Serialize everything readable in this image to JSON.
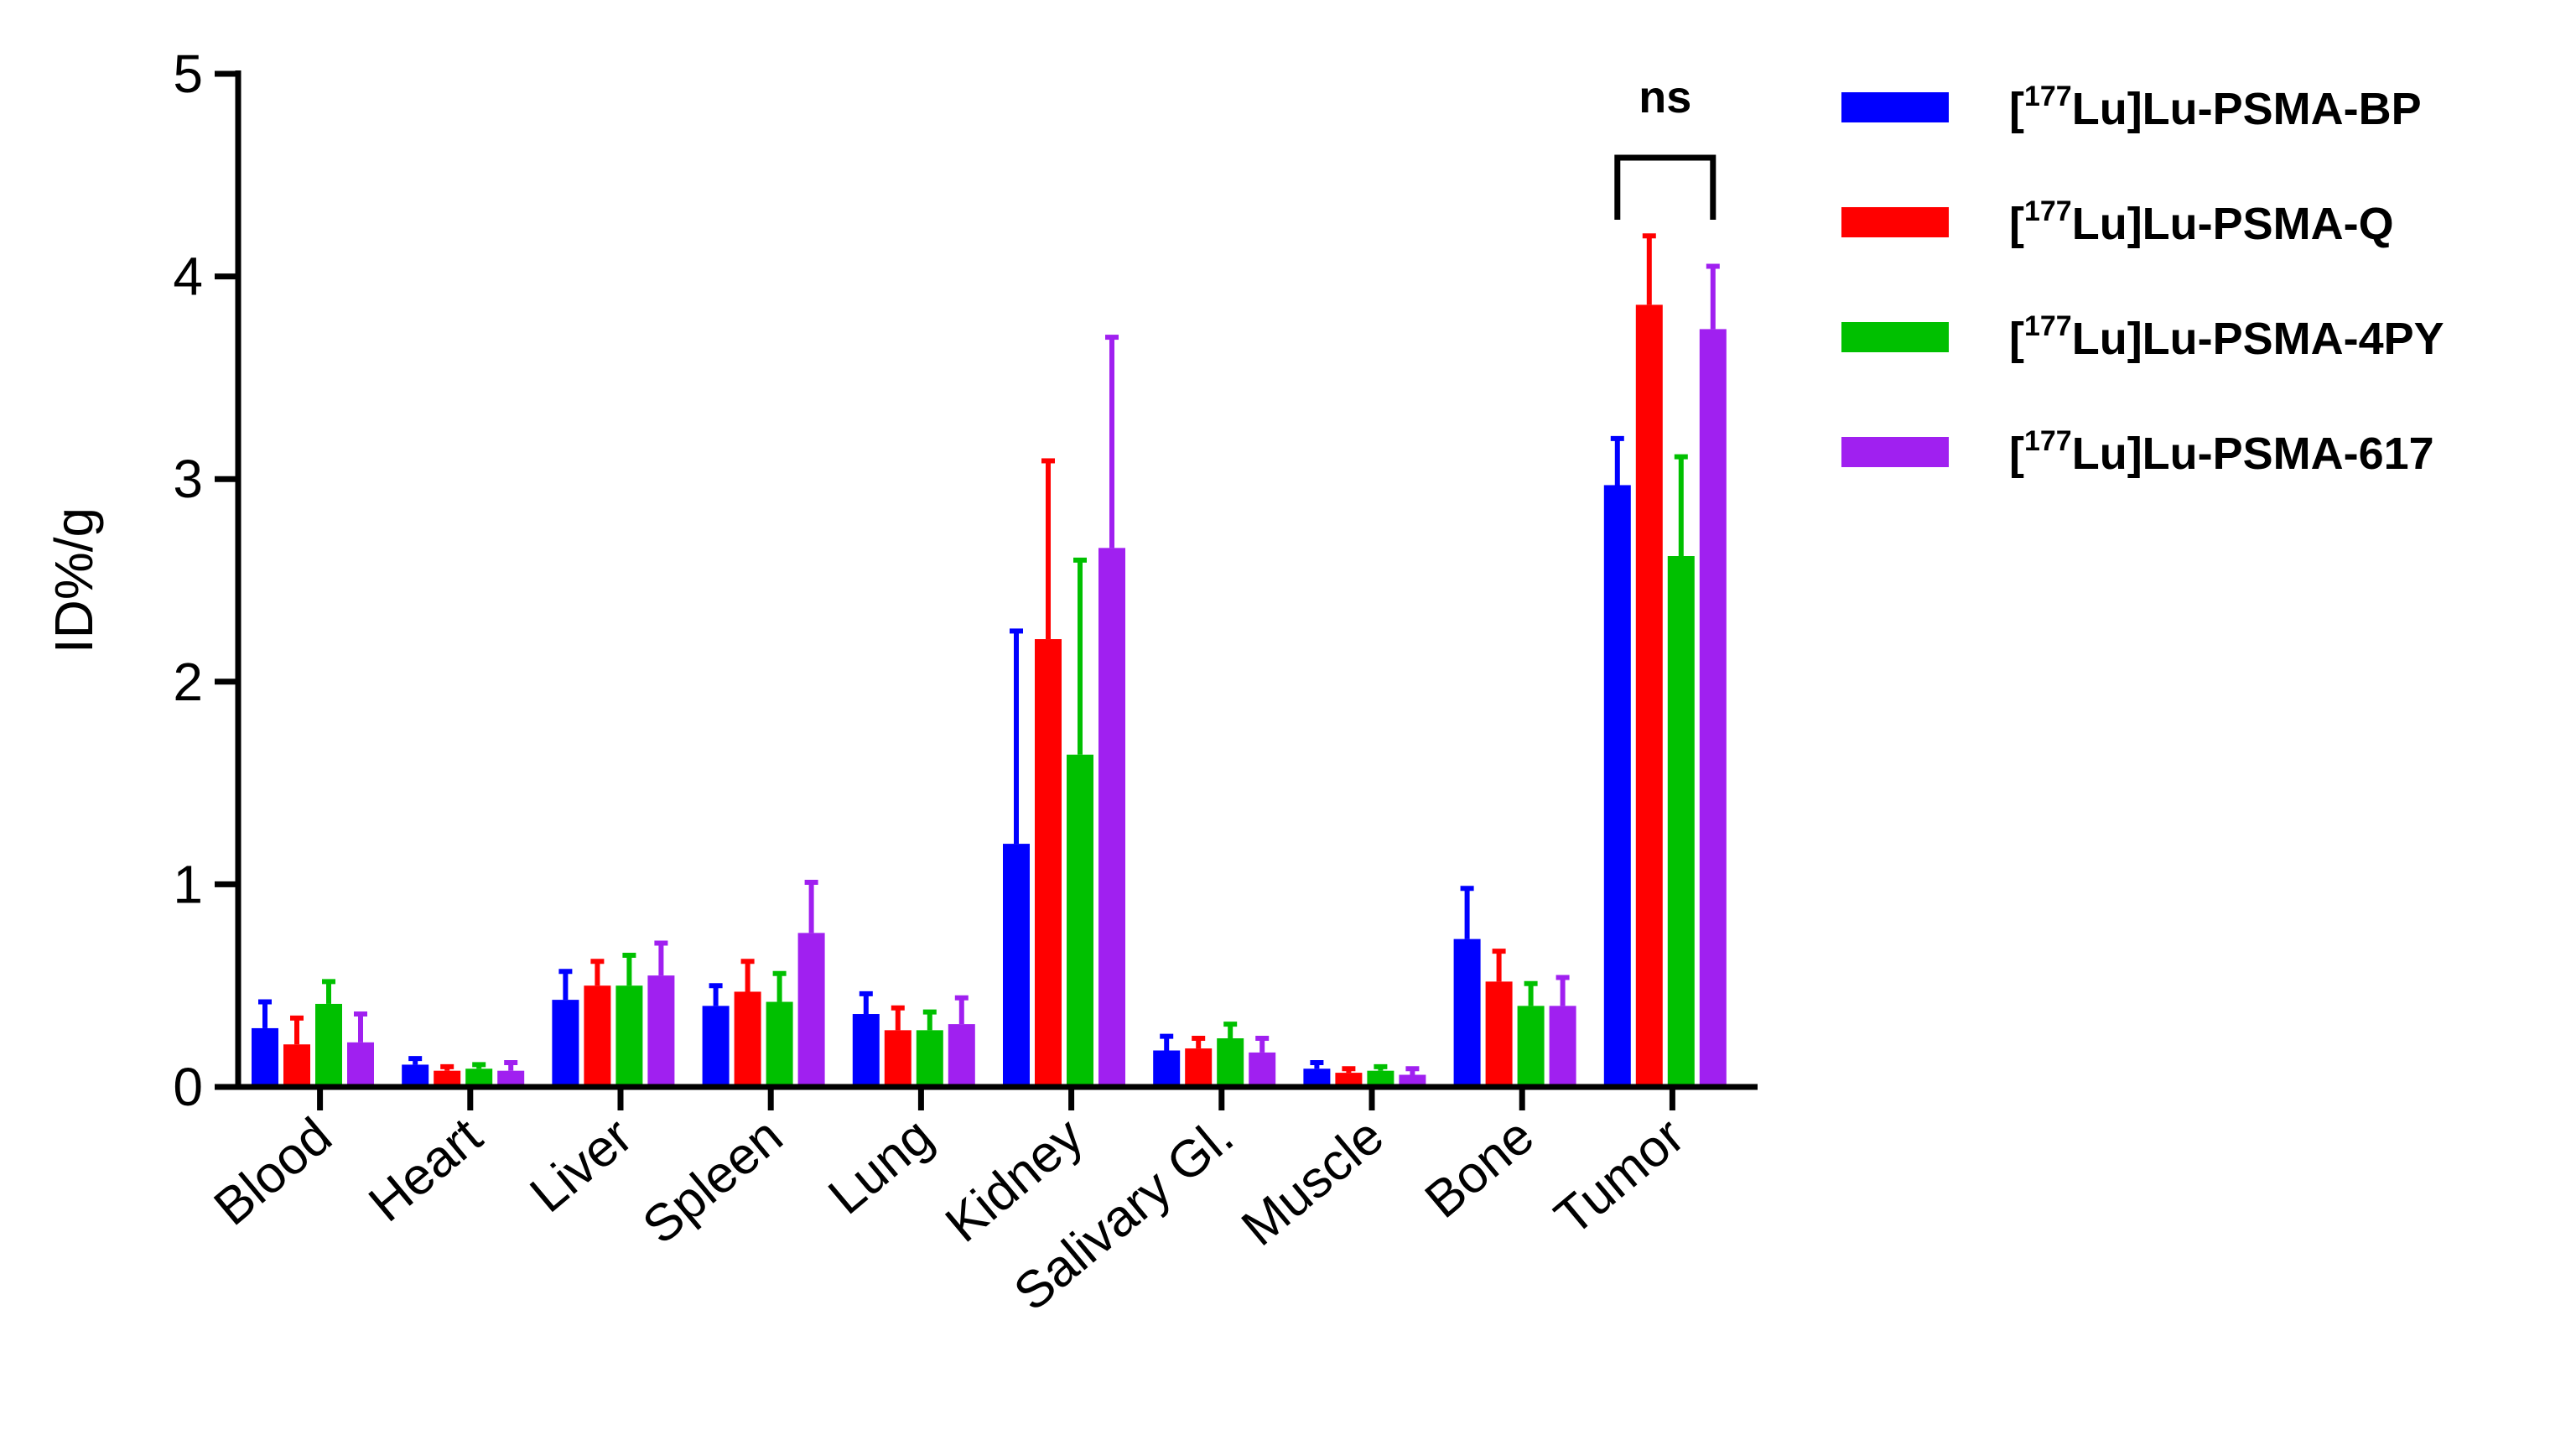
{
  "chart_data": {
    "type": "bar",
    "ylabel": "ID%/g",
    "xlabel": "",
    "ylim": [
      0,
      5
    ],
    "yticks": [
      "0",
      "1",
      "2",
      "3",
      "4",
      "5"
    ],
    "categories": [
      "Blood",
      "Heart",
      "Liver",
      "Spleen",
      "Lung",
      "Kidney",
      "Salivary Gl.",
      "Muscle",
      "Bone",
      "Tumor"
    ],
    "series": [
      {
        "name": "[177Lu]Lu-PSMA-BP",
        "name_parts": {
          "prefix": "[",
          "sup": "177",
          "rest": "Lu]Lu-PSMA-BP"
        },
        "color": "#0000ff",
        "values": [
          0.29,
          0.11,
          0.43,
          0.4,
          0.36,
          1.2,
          0.18,
          0.09,
          0.73,
          2.97
        ],
        "errors": [
          0.13,
          0.03,
          0.14,
          0.1,
          0.1,
          1.05,
          0.07,
          0.03,
          0.25,
          0.23
        ]
      },
      {
        "name": "[177Lu]Lu-PSMA-Q",
        "name_parts": {
          "prefix": "[",
          "sup": "177",
          "rest": "Lu]Lu-PSMA-Q"
        },
        "color": "#ff0000",
        "values": [
          0.21,
          0.08,
          0.5,
          0.47,
          0.28,
          2.21,
          0.19,
          0.07,
          0.52,
          3.86
        ],
        "errors": [
          0.13,
          0.02,
          0.12,
          0.15,
          0.11,
          0.88,
          0.05,
          0.02,
          0.15,
          0.34
        ]
      },
      {
        "name": "[177Lu]Lu-PSMA-4PY",
        "name_parts": {
          "prefix": "[",
          "sup": "177",
          "rest": "Lu]Lu-PSMA-4PY"
        },
        "color": "#00c000",
        "values": [
          0.41,
          0.09,
          0.5,
          0.42,
          0.28,
          1.64,
          0.24,
          0.08,
          0.4,
          2.62
        ],
        "errors": [
          0.11,
          0.02,
          0.15,
          0.14,
          0.09,
          0.96,
          0.07,
          0.02,
          0.11,
          0.49
        ]
      },
      {
        "name": "[177Lu]Lu-PSMA-617",
        "name_parts": {
          "prefix": "[",
          "sup": "177",
          "rest": "Lu]Lu-PSMA-617"
        },
        "color": "#a020f0",
        "values": [
          0.22,
          0.08,
          0.55,
          0.76,
          0.31,
          2.66,
          0.17,
          0.06,
          0.4,
          3.74
        ],
        "errors": [
          0.14,
          0.04,
          0.16,
          0.25,
          0.13,
          1.04,
          0.07,
          0.03,
          0.14,
          0.31
        ]
      }
    ],
    "annotations": [
      {
        "text": "ns",
        "category": "Tumor",
        "between_series": [
          0,
          3
        ]
      }
    ],
    "legend_position": "top-right",
    "grid": false
  }
}
